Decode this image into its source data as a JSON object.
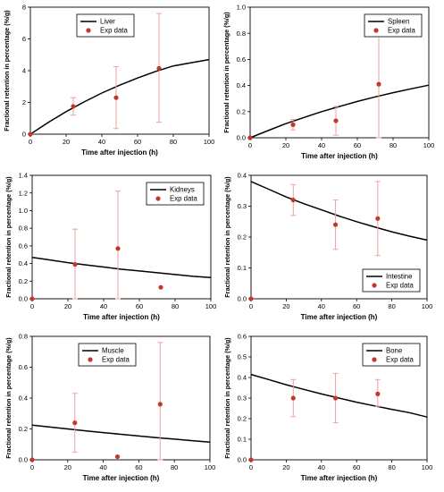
{
  "colors": {
    "model_line": "#000000",
    "exp_point": "#c0392b",
    "error_bar": "#f0a0a0",
    "axis": "#000000"
  },
  "chart_data": [
    {
      "type": "line",
      "title": "",
      "xlabel": "Time after injection (h)",
      "ylabel": "Fractional retention in percentage (%/g)",
      "xlim": [
        0,
        100
      ],
      "ylim": [
        0,
        8
      ],
      "xticks": [
        "0",
        "20",
        "40",
        "60",
        "80",
        "100"
      ],
      "yticks": [
        "0",
        "2",
        "4",
        "6",
        "8"
      ],
      "legend_position": "top-left",
      "series": [
        {
          "name": "Liver",
          "kind": "line",
          "x": [
            0,
            10,
            20,
            30,
            40,
            50,
            60,
            70,
            80,
            90,
            100
          ],
          "y": [
            0,
            0.74,
            1.42,
            2.03,
            2.59,
            3.09,
            3.54,
            3.95,
            4.3,
            4.5,
            4.7
          ]
        },
        {
          "name": "Exp data",
          "kind": "scatter",
          "x": [
            0,
            24,
            48,
            72
          ],
          "y": [
            0,
            1.75,
            2.3,
            4.15
          ],
          "err_low": [
            0,
            1.2,
            0.35,
            0.75
          ],
          "err_high": [
            0,
            2.3,
            4.25,
            7.6
          ]
        }
      ]
    },
    {
      "type": "line",
      "title": "",
      "xlabel": "Time after injection (h)",
      "ylabel": "Fractional retention in percentage (%/g)",
      "xlim": [
        0,
        100
      ],
      "ylim": [
        0,
        1.0
      ],
      "xticks": [
        "0",
        "20",
        "40",
        "60",
        "80",
        "100"
      ],
      "yticks": [
        "0.0",
        "0.2",
        "0.4",
        "0.6",
        "0.8",
        "1.0"
      ],
      "legend_position": "top-right",
      "series": [
        {
          "name": "Spleen",
          "kind": "line",
          "x": [
            0,
            10,
            20,
            30,
            40,
            50,
            60,
            70,
            80,
            90,
            100
          ],
          "y": [
            0,
            0.055,
            0.108,
            0.155,
            0.2,
            0.24,
            0.278,
            0.313,
            0.345,
            0.375,
            0.403
          ]
        },
        {
          "name": "Exp data",
          "kind": "scatter",
          "x": [
            0,
            24,
            48,
            72
          ],
          "y": [
            0,
            0.1,
            0.13,
            0.41
          ],
          "err_low": [
            0,
            0.06,
            0.02,
            0.0
          ],
          "err_high": [
            0,
            0.14,
            0.24,
            0.85
          ]
        }
      ]
    },
    {
      "type": "line",
      "title": "",
      "xlabel": "Time after injection (h)",
      "ylabel": "Fractional retention in percentage (%/g)",
      "xlim": [
        0,
        100
      ],
      "ylim": [
        0,
        1.4
      ],
      "xticks": [
        "0",
        "20",
        "40",
        "60",
        "80",
        "100"
      ],
      "yticks": [
        "0.0",
        "0.2",
        "0.4",
        "0.6",
        "0.8",
        "1.0",
        "1.2",
        "1.4"
      ],
      "legend_position": "top-right",
      "series": [
        {
          "name": "Kidneys",
          "kind": "line",
          "x": [
            0,
            10,
            20,
            30,
            40,
            50,
            60,
            70,
            80,
            90,
            100
          ],
          "y": [
            0.47,
            0.44,
            0.41,
            0.385,
            0.36,
            0.335,
            0.315,
            0.295,
            0.275,
            0.255,
            0.24
          ]
        },
        {
          "name": "Exp data",
          "kind": "scatter",
          "x": [
            0,
            24,
            48,
            72
          ],
          "y": [
            0,
            0.39,
            0.57,
            0.13
          ],
          "err_low": [
            0,
            0.0,
            0.0,
            0.13
          ],
          "err_high": [
            0,
            0.79,
            1.22,
            0.13
          ]
        }
      ]
    },
    {
      "type": "line",
      "title": "",
      "xlabel": "Time after injection (h)",
      "ylabel": "Fractional retention in percentage (%/g)",
      "xlim": [
        0,
        100
      ],
      "ylim": [
        0,
        0.4
      ],
      "xticks": [
        "0",
        "20",
        "40",
        "60",
        "80",
        "100"
      ],
      "yticks": [
        "0.0",
        "0.1",
        "0.2",
        "0.3",
        "0.4"
      ],
      "legend_position": "bottom-right",
      "series": [
        {
          "name": "Intestine",
          "kind": "line",
          "x": [
            0,
            10,
            20,
            30,
            40,
            50,
            60,
            70,
            80,
            90,
            100
          ],
          "y": [
            0.38,
            0.355,
            0.33,
            0.308,
            0.288,
            0.268,
            0.25,
            0.233,
            0.217,
            0.203,
            0.19
          ]
        },
        {
          "name": "Exp data",
          "kind": "scatter",
          "x": [
            0,
            24,
            48,
            72
          ],
          "y": [
            0,
            0.32,
            0.24,
            0.26
          ],
          "err_low": [
            0,
            0.27,
            0.16,
            0.14
          ],
          "err_high": [
            0,
            0.37,
            0.32,
            0.38
          ]
        }
      ]
    },
    {
      "type": "line",
      "title": "",
      "xlabel": "Time after injection (h)",
      "ylabel": "Fractional retention in percentage (%/g)",
      "xlim": [
        0,
        100
      ],
      "ylim": [
        0,
        0.8
      ],
      "xticks": [
        "0",
        "20",
        "40",
        "60",
        "80",
        "100"
      ],
      "yticks": [
        "0.0",
        "0.2",
        "0.4",
        "0.6",
        "0.8"
      ],
      "legend_position": "top-left",
      "series": [
        {
          "name": "Muscle",
          "kind": "line",
          "x": [
            0,
            10,
            20,
            30,
            40,
            50,
            60,
            70,
            80,
            90,
            100
          ],
          "y": [
            0.225,
            0.212,
            0.2,
            0.188,
            0.176,
            0.165,
            0.154,
            0.144,
            0.134,
            0.124,
            0.115
          ]
        },
        {
          "name": "Exp data",
          "kind": "scatter",
          "x": [
            0,
            24,
            48,
            72
          ],
          "y": [
            0,
            0.24,
            0.02,
            0.36
          ],
          "err_low": [
            0,
            0.05,
            0.02,
            0.0
          ],
          "err_high": [
            0,
            0.43,
            0.02,
            0.76
          ]
        }
      ]
    },
    {
      "type": "line",
      "title": "",
      "xlabel": "Time after injection (h)",
      "ylabel": "Fractional retention in percentage (%/g)",
      "xlim": [
        0,
        100
      ],
      "ylim": [
        0,
        0.6
      ],
      "xticks": [
        "0",
        "20",
        "40",
        "60",
        "80",
        "100"
      ],
      "yticks": [
        "0.0",
        "0.1",
        "0.2",
        "0.3",
        "0.4",
        "0.5",
        "0.6"
      ],
      "legend_position": "top-right",
      "series": [
        {
          "name": "Bone",
          "kind": "line",
          "x": [
            0,
            10,
            20,
            30,
            40,
            50,
            60,
            70,
            80,
            90,
            100
          ],
          "y": [
            0.415,
            0.39,
            0.365,
            0.342,
            0.32,
            0.3,
            0.28,
            0.262,
            0.245,
            0.229,
            0.208
          ]
        },
        {
          "name": "Exp data",
          "kind": "scatter",
          "x": [
            0,
            24,
            48,
            72
          ],
          "y": [
            0,
            0.3,
            0.3,
            0.32
          ],
          "err_low": [
            0,
            0.21,
            0.18,
            0.26
          ],
          "err_high": [
            0,
            0.39,
            0.42,
            0.39
          ]
        }
      ]
    }
  ]
}
